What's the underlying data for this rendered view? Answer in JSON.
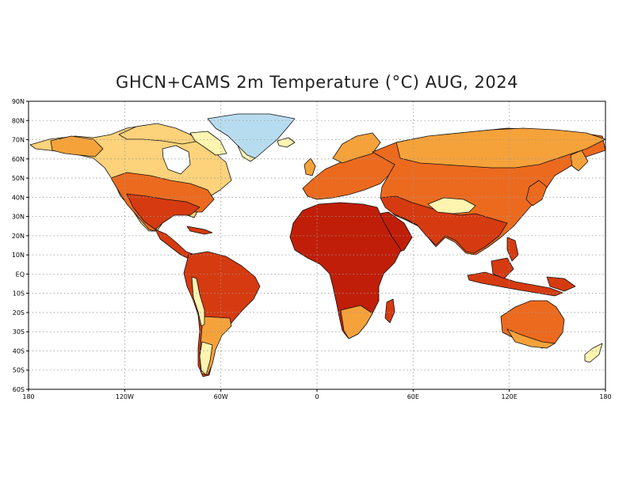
{
  "title": "GHCN+CAMS 2m Temperature (°C) AUG, 2024",
  "map": {
    "projection": "equirectangular",
    "lon_range": [
      -180,
      180
    ],
    "lat_range": [
      -60,
      90
    ],
    "grid": "dotted",
    "lat_ticks": [
      {
        "lat": 90,
        "label": "90N"
      },
      {
        "lat": 80,
        "label": "80N"
      },
      {
        "lat": 70,
        "label": "70N"
      },
      {
        "lat": 60,
        "label": "60N"
      },
      {
        "lat": 50,
        "label": "50N"
      },
      {
        "lat": 40,
        "label": "40N"
      },
      {
        "lat": 30,
        "label": "30N"
      },
      {
        "lat": 20,
        "label": "20N"
      },
      {
        "lat": 10,
        "label": "10N"
      },
      {
        "lat": 0,
        "label": "EQ"
      },
      {
        "lat": -10,
        "label": "10S"
      },
      {
        "lat": -20,
        "label": "20S"
      },
      {
        "lat": -30,
        "label": "30S"
      },
      {
        "lat": -40,
        "label": "40S"
      },
      {
        "lat": -50,
        "label": "50S"
      },
      {
        "lat": -60,
        "label": "60S"
      }
    ],
    "lon_ticks": [
      {
        "lon": -180,
        "label": "180"
      },
      {
        "lon": -120,
        "label": "120W"
      },
      {
        "lon": -60,
        "label": "60W"
      },
      {
        "lon": 0,
        "label": "0"
      },
      {
        "lon": 60,
        "label": "60E"
      },
      {
        "lon": 120,
        "label": "120E"
      },
      {
        "lon": 180,
        "label": "180"
      }
    ],
    "colors": {
      "coastline": "#111111",
      "gridline": "#9a9a9a",
      "cold_ice": "#b8dcef",
      "very_cool": "#fff4b0",
      "cool": "#fcd27a",
      "mild": "#f6a23a",
      "warm": "#ec6a1e",
      "hot": "#d63a10",
      "very_hot": "#c01e08"
    }
  }
}
